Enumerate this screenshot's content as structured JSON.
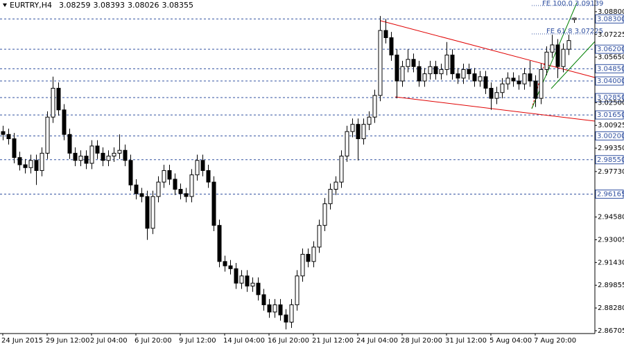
{
  "chart_data": {
    "type": "candlestick",
    "symbol": "EURTRY,H4",
    "categories": [
      "24 Jun 2015",
      null,
      null,
      null,
      null,
      null,
      null,
      null,
      "29 Jun 12:00",
      null,
      null,
      null,
      null,
      null,
      null,
      null,
      "2 Jul 04:00",
      null,
      null,
      null,
      null,
      null,
      null,
      null,
      "6 Jul 20:00",
      null,
      null,
      null,
      null,
      null,
      null,
      null,
      "9 Jul 12:00",
      null,
      null,
      null,
      null,
      null,
      null,
      null,
      "14 Jul 04:00",
      null,
      null,
      null,
      null,
      null,
      null,
      null,
      "16 Jul 20:00",
      null,
      null,
      null,
      null,
      null,
      null,
      null,
      "21 Jul 12:00",
      null,
      null,
      null,
      null,
      null,
      null,
      null,
      "24 Jul 04:00",
      null,
      null,
      null,
      null,
      null,
      null,
      null,
      "28 Jul 20:00",
      null,
      null,
      null,
      null,
      null,
      null,
      null,
      "31 Jul 12:00",
      null,
      null,
      null,
      null,
      null,
      null,
      null,
      "5 Aug 04:00",
      null,
      null,
      null,
      null,
      null,
      null,
      null,
      "7 Aug 20:00",
      null,
      null,
      null,
      null,
      null,
      null,
      null
    ],
    "open": [
      3.005,
      3.003,
      3.0,
      2.987,
      2.982,
      2.98,
      2.985,
      2.978,
      2.99,
      3.015,
      3.035,
      3.02,
      3.003,
      2.99,
      2.985,
      2.988,
      2.983,
      2.995,
      2.99,
      2.985,
      2.988,
      2.99,
      2.992,
      2.985,
      2.968,
      2.962,
      2.96,
      2.938,
      2.96,
      2.97,
      2.978,
      2.972,
      2.965,
      2.962,
      2.96,
      2.975,
      2.985,
      2.978,
      2.97,
      2.94,
      2.915,
      2.912,
      2.91,
      2.9,
      2.905,
      2.898,
      2.9,
      2.892,
      2.885,
      2.88,
      2.885,
      2.878,
      2.873,
      2.885,
      2.905,
      2.92,
      2.915,
      2.925,
      2.94,
      2.955,
      2.965,
      2.97,
      2.988,
      3.005,
      3.01,
      3.0,
      3.01,
      3.015,
      3.03,
      3.075,
      3.07,
      3.058,
      3.04,
      3.05,
      3.055,
      3.05,
      3.04,
      3.045,
      3.05,
      3.045,
      3.048,
      3.058,
      3.045,
      3.042,
      3.048,
      3.045,
      3.04,
      3.043,
      3.035,
      3.028,
      3.032,
      3.038,
      3.042,
      3.04,
      3.038,
      3.045,
      3.04,
      3.028,
      3.048,
      3.06,
      3.065,
      3.05,
      3.062,
      3.08259
    ],
    "high": [
      3.009,
      3.007,
      3.004,
      2.991,
      2.986,
      2.989,
      2.989,
      2.994,
      3.019,
      3.043,
      3.039,
      3.024,
      3.007,
      2.994,
      2.992,
      2.992,
      2.999,
      2.999,
      2.994,
      2.992,
      2.994,
      3.003,
      2.996,
      2.989,
      2.972,
      2.966,
      2.964,
      2.964,
      2.974,
      2.982,
      2.982,
      2.976,
      2.969,
      2.966,
      2.979,
      2.989,
      2.989,
      2.982,
      2.974,
      2.944,
      2.919,
      2.916,
      2.914,
      2.909,
      2.909,
      2.904,
      2.904,
      2.896,
      2.889,
      2.889,
      2.889,
      2.882,
      2.889,
      2.909,
      2.924,
      2.924,
      2.929,
      2.944,
      2.959,
      2.969,
      2.974,
      2.992,
      3.009,
      3.014,
      3.014,
      3.014,
      3.019,
      3.034,
      3.085,
      3.083,
      3.074,
      3.062,
      3.054,
      3.062,
      3.059,
      3.054,
      3.049,
      3.054,
      3.054,
      3.052,
      3.067,
      3.062,
      3.049,
      3.052,
      3.052,
      3.049,
      3.047,
      3.047,
      3.039,
      3.036,
      3.042,
      3.046,
      3.046,
      3.044,
      3.049,
      3.054,
      3.044,
      3.052,
      3.064,
      3.072,
      3.069,
      3.066,
      3.072,
      3.08393
    ],
    "low": [
      2.999,
      2.996,
      2.983,
      2.978,
      2.976,
      2.976,
      2.968,
      2.974,
      2.986,
      3.011,
      3.016,
      2.999,
      2.986,
      2.981,
      2.981,
      2.979,
      2.979,
      2.986,
      2.981,
      2.981,
      2.984,
      2.986,
      2.981,
      2.964,
      2.958,
      2.956,
      2.93,
      2.934,
      2.956,
      2.966,
      2.968,
      2.961,
      2.958,
      2.956,
      2.956,
      2.971,
      2.974,
      2.966,
      2.936,
      2.911,
      2.908,
      2.906,
      2.896,
      2.896,
      2.894,
      2.894,
      2.888,
      2.881,
      2.876,
      2.876,
      2.874,
      2.868,
      2.869,
      2.881,
      2.901,
      2.911,
      2.911,
      2.921,
      2.936,
      2.951,
      2.961,
      2.966,
      2.984,
      3.001,
      2.985,
      2.996,
      3.006,
      3.011,
      3.026,
      3.066,
      3.054,
      3.028,
      3.036,
      3.046,
      3.046,
      3.036,
      3.036,
      3.041,
      3.041,
      3.041,
      3.044,
      3.041,
      3.038,
      3.038,
      3.041,
      3.036,
      3.036,
      3.031,
      3.02,
      3.024,
      3.028,
      3.034,
      3.036,
      3.034,
      3.034,
      3.036,
      3.022,
      3.024,
      3.044,
      3.056,
      3.042,
      3.046,
      3.058,
      3.08026
    ],
    "close": [
      3.003,
      3.0,
      2.987,
      2.982,
      2.98,
      2.985,
      2.978,
      2.99,
      3.015,
      3.035,
      3.02,
      3.003,
      2.99,
      2.985,
      2.988,
      2.983,
      2.995,
      2.99,
      2.985,
      2.988,
      2.99,
      2.992,
      2.985,
      2.968,
      2.962,
      2.96,
      2.938,
      2.96,
      2.97,
      2.978,
      2.972,
      2.965,
      2.962,
      2.96,
      2.975,
      2.985,
      2.978,
      2.97,
      2.94,
      2.915,
      2.912,
      2.91,
      2.9,
      2.905,
      2.898,
      2.9,
      2.892,
      2.885,
      2.88,
      2.885,
      2.878,
      2.873,
      2.885,
      2.905,
      2.92,
      2.915,
      2.925,
      2.94,
      2.955,
      2.965,
      2.97,
      2.988,
      3.005,
      3.01,
      3.0,
      3.01,
      3.015,
      3.03,
      3.075,
      3.07,
      3.058,
      3.04,
      3.05,
      3.055,
      3.05,
      3.04,
      3.045,
      3.05,
      3.045,
      3.048,
      3.058,
      3.045,
      3.042,
      3.048,
      3.045,
      3.04,
      3.043,
      3.035,
      3.028,
      3.032,
      3.038,
      3.042,
      3.04,
      3.038,
      3.045,
      3.04,
      3.028,
      3.048,
      3.06,
      3.065,
      3.05,
      3.062,
      3.068,
      3.08355
    ],
    "ylim": [
      2.8651,
      3.0961
    ],
    "yticks": [
      {
        "value": 3.088,
        "label": "3.08800"
      },
      3.07225,
      {
        "value": 3.0565,
        "label": "3.05650"
      },
      {
        "value": 3.025,
        "label": "3.02500"
      },
      3.00925,
      {
        "value": 2.9935,
        "label": "2.99350"
      },
      {
        "value": 2.9773,
        "label": "2.97730"
      },
      {
        "value": 2.9458,
        "label": "2.94580"
      },
      2.93005,
      {
        "value": 2.9143,
        "label": "2.91430"
      },
      2.89855,
      {
        "value": 2.8828,
        "label": "2.88280"
      },
      2.86705
    ],
    "levels": [
      {
        "value": 3.083,
        "label": "3.08300"
      },
      {
        "value": 3.062,
        "label": "3.06200"
      },
      {
        "value": 3.0485,
        "label": "3.04850"
      },
      {
        "value": 3.04,
        "label": "3.04000"
      },
      {
        "value": 3.0285,
        "label": "3.02850"
      },
      {
        "value": 3.0165,
        "label": "3.01650"
      },
      {
        "value": 3.002,
        "label": "3.00200"
      },
      {
        "value": 2.9855,
        "label": "2.98550"
      },
      2.96165
    ],
    "annotations": [
      "FE 100.0 3.09139",
      "FE 61.8 3.07225"
    ]
  }
}
